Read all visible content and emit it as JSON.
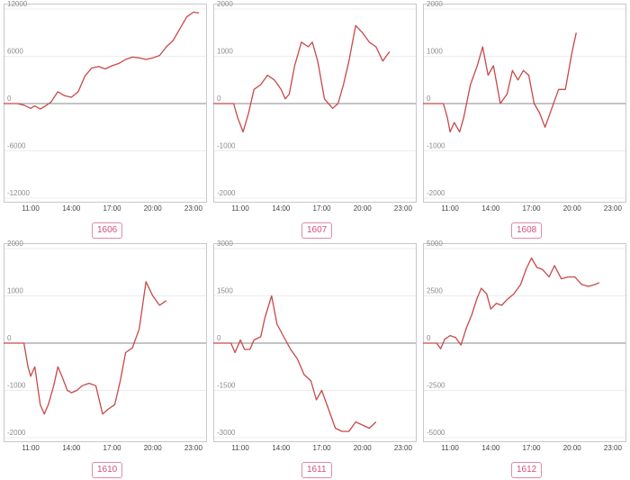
{
  "chart_data": [
    {
      "type": "line",
      "label": "1606",
      "yticks": [
        12000,
        6000,
        0,
        -6000,
        -12000
      ],
      "ylim": [
        -12000,
        12000
      ],
      "xticks": [
        "11:00",
        "14:00",
        "17:00",
        "20:00",
        "23:00"
      ],
      "xlim": [
        9,
        24
      ],
      "points": [
        [
          9,
          0
        ],
        [
          10,
          0
        ],
        [
          10.5,
          -200
        ],
        [
          11,
          -600
        ],
        [
          11.3,
          -300
        ],
        [
          11.7,
          -700
        ],
        [
          12,
          -400
        ],
        [
          12.5,
          200
        ],
        [
          13,
          1500
        ],
        [
          13.5,
          1000
        ],
        [
          14,
          800
        ],
        [
          14.5,
          1500
        ],
        [
          15,
          3500
        ],
        [
          15.5,
          4500
        ],
        [
          16,
          4700
        ],
        [
          16.5,
          4400
        ],
        [
          17,
          4800
        ],
        [
          17.5,
          5100
        ],
        [
          18,
          5600
        ],
        [
          18.5,
          5900
        ],
        [
          19,
          5800
        ],
        [
          19.5,
          5600
        ],
        [
          20,
          5800
        ],
        [
          20.5,
          6100
        ],
        [
          21,
          7200
        ],
        [
          21.5,
          8000
        ],
        [
          22,
          9500
        ],
        [
          22.5,
          11000
        ],
        [
          23,
          11600
        ],
        [
          23.4,
          11500
        ]
      ],
      "color": "#c94848"
    },
    {
      "type": "line",
      "label": "1607",
      "yticks": [
        2000,
        1000,
        0,
        -1000,
        -2000
      ],
      "ylim": [
        -2000,
        2000
      ],
      "xticks": [
        "11:00",
        "14:00",
        "17:00",
        "20:00",
        "23:00"
      ],
      "xlim": [
        9,
        24
      ],
      "points": [
        [
          9,
          0
        ],
        [
          10.5,
          0
        ],
        [
          10.8,
          -300
        ],
        [
          11.2,
          -600
        ],
        [
          11.6,
          -200
        ],
        [
          12,
          300
        ],
        [
          12.5,
          400
        ],
        [
          13,
          600
        ],
        [
          13.5,
          500
        ],
        [
          14,
          300
        ],
        [
          14.3,
          100
        ],
        [
          14.6,
          200
        ],
        [
          15,
          800
        ],
        [
          15.5,
          1300
        ],
        [
          16,
          1200
        ],
        [
          16.3,
          1300
        ],
        [
          16.7,
          900
        ],
        [
          17.2,
          100
        ],
        [
          17.8,
          -100
        ],
        [
          18.2,
          0
        ],
        [
          18.6,
          400
        ],
        [
          19,
          900
        ],
        [
          19.5,
          1650
        ],
        [
          20,
          1500
        ],
        [
          20.5,
          1300
        ],
        [
          21,
          1200
        ],
        [
          21.5,
          900
        ],
        [
          22,
          1100
        ]
      ],
      "color": "#c94848"
    },
    {
      "type": "line",
      "label": "1608",
      "yticks": [
        2000,
        1000,
        0,
        -1000,
        -2000
      ],
      "ylim": [
        -2000,
        2000
      ],
      "xticks": [
        "11:00",
        "14:00",
        "17:00",
        "20:00",
        "23:00"
      ],
      "xlim": [
        9,
        24
      ],
      "points": [
        [
          9,
          0
        ],
        [
          10.5,
          0
        ],
        [
          10.8,
          -300
        ],
        [
          11,
          -600
        ],
        [
          11.3,
          -400
        ],
        [
          11.7,
          -600
        ],
        [
          12,
          -300
        ],
        [
          12.5,
          400
        ],
        [
          13,
          800
        ],
        [
          13.4,
          1200
        ],
        [
          13.8,
          600
        ],
        [
          14.2,
          800
        ],
        [
          14.7,
          0
        ],
        [
          15.2,
          200
        ],
        [
          15.6,
          700
        ],
        [
          16,
          500
        ],
        [
          16.4,
          700
        ],
        [
          16.8,
          600
        ],
        [
          17.2,
          0
        ],
        [
          17.6,
          -200
        ],
        [
          18,
          -500
        ],
        [
          18.5,
          -100
        ],
        [
          19,
          300
        ],
        [
          19.5,
          300
        ],
        [
          20,
          1100
        ],
        [
          20.3,
          1500
        ]
      ],
      "color": "#c94848"
    },
    {
      "type": "line",
      "label": "1610",
      "yticks": [
        2000,
        1000,
        0,
        -1000,
        -2000
      ],
      "ylim": [
        -2000,
        2000
      ],
      "xticks": [
        "11:00",
        "14:00",
        "17:00",
        "20:00",
        "23:00"
      ],
      "xlim": [
        9,
        24
      ],
      "points": [
        [
          9,
          0
        ],
        [
          10.5,
          0
        ],
        [
          10.8,
          -500
        ],
        [
          11,
          -700
        ],
        [
          11.3,
          -500
        ],
        [
          11.7,
          -1300
        ],
        [
          12,
          -1500
        ],
        [
          12.3,
          -1300
        ],
        [
          12.7,
          -900
        ],
        [
          13,
          -500
        ],
        [
          13.3,
          -700
        ],
        [
          13.7,
          -1000
        ],
        [
          14,
          -1050
        ],
        [
          14.4,
          -1000
        ],
        [
          14.8,
          -900
        ],
        [
          15.3,
          -850
        ],
        [
          15.8,
          -900
        ],
        [
          16.3,
          -1500
        ],
        [
          16.7,
          -1400
        ],
        [
          17.2,
          -1300
        ],
        [
          17.6,
          -800
        ],
        [
          18,
          -200
        ],
        [
          18.5,
          -100
        ],
        [
          19,
          300
        ],
        [
          19.5,
          1300
        ],
        [
          20,
          1000
        ],
        [
          20.5,
          800
        ],
        [
          21,
          900
        ]
      ],
      "color": "#c94848"
    },
    {
      "type": "line",
      "label": "1611",
      "yticks": [
        3000,
        1500,
        0,
        -1500,
        -3000
      ],
      "ylim": [
        -3000,
        3000
      ],
      "xticks": [
        "11:00",
        "14:00",
        "17:00",
        "20:00",
        "23:00"
      ],
      "xlim": [
        9,
        24
      ],
      "points": [
        [
          9,
          0
        ],
        [
          10.3,
          0
        ],
        [
          10.6,
          -300
        ],
        [
          11,
          100
        ],
        [
          11.3,
          -200
        ],
        [
          11.7,
          -200
        ],
        [
          12,
          100
        ],
        [
          12.5,
          200
        ],
        [
          12.8,
          800
        ],
        [
          13.3,
          1500
        ],
        [
          13.7,
          600
        ],
        [
          14.2,
          200
        ],
        [
          14.7,
          -200
        ],
        [
          15.2,
          -500
        ],
        [
          15.7,
          -1000
        ],
        [
          16.2,
          -1200
        ],
        [
          16.6,
          -1800
        ],
        [
          17,
          -1500
        ],
        [
          17.5,
          -2100
        ],
        [
          18,
          -2700
        ],
        [
          18.5,
          -2800
        ],
        [
          19,
          -2800
        ],
        [
          19.5,
          -2500
        ],
        [
          20,
          -2600
        ],
        [
          20.5,
          -2700
        ],
        [
          21,
          -2500
        ]
      ],
      "color": "#c94848"
    },
    {
      "type": "line",
      "label": "1612",
      "yticks": [
        5000,
        2500,
        0,
        -2500,
        -5000
      ],
      "ylim": [
        -5000,
        5000
      ],
      "xticks": [
        "11:00",
        "14:00",
        "17:00",
        "20:00",
        "23:00"
      ],
      "xlim": [
        9,
        24
      ],
      "points": [
        [
          9,
          0
        ],
        [
          10,
          0
        ],
        [
          10.3,
          -300
        ],
        [
          10.6,
          200
        ],
        [
          11,
          400
        ],
        [
          11.4,
          300
        ],
        [
          11.8,
          -100
        ],
        [
          12.2,
          800
        ],
        [
          12.6,
          1500
        ],
        [
          13,
          2400
        ],
        [
          13.3,
          2900
        ],
        [
          13.7,
          2600
        ],
        [
          14,
          1800
        ],
        [
          14.4,
          2100
        ],
        [
          14.8,
          2000
        ],
        [
          15.2,
          2300
        ],
        [
          15.7,
          2600
        ],
        [
          16.2,
          3100
        ],
        [
          16.6,
          3900
        ],
        [
          17,
          4500
        ],
        [
          17.4,
          4000
        ],
        [
          17.8,
          3900
        ],
        [
          18.3,
          3500
        ],
        [
          18.7,
          4100
        ],
        [
          19.2,
          3400
        ],
        [
          19.7,
          3500
        ],
        [
          20.2,
          3500
        ],
        [
          20.7,
          3100
        ],
        [
          21.2,
          3000
        ],
        [
          21.7,
          3100
        ],
        [
          22,
          3200
        ]
      ],
      "color": "#c94848"
    }
  ]
}
